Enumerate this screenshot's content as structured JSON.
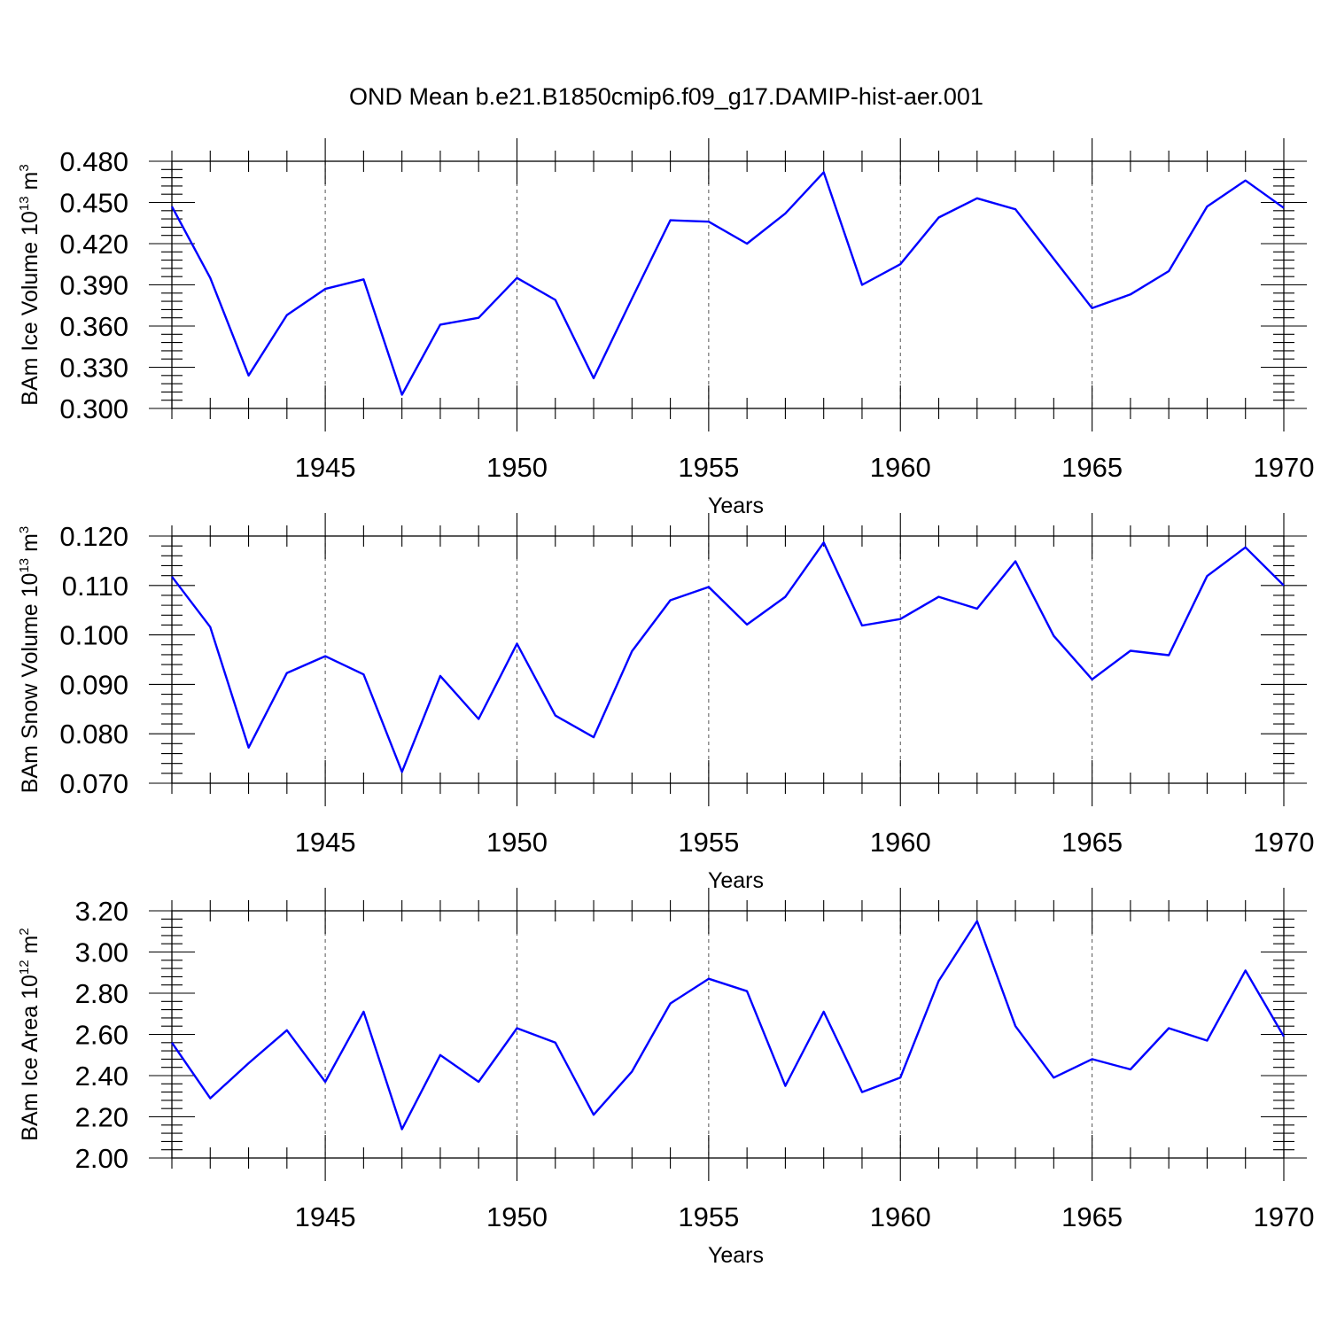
{
  "title": "OND Mean b.e21.B1850cmip6.f09_g17.DAMIP-hist-aer.001",
  "line_color": "#0000ff",
  "chart_data": [
    {
      "type": "line",
      "xlabel": "Years",
      "ylabel": {
        "prefix": "BAm Ice Volume 10",
        "exp": "13",
        "unit": " m",
        "unit_exp": "3"
      },
      "xlim": [
        1941,
        1970
      ],
      "ylim": [
        0.3,
        0.48
      ],
      "xticks": [
        1945,
        1950,
        1955,
        1960,
        1965,
        1970
      ],
      "yticks": [
        "0.300",
        "0.330",
        "0.360",
        "0.390",
        "0.420",
        "0.450",
        "0.480"
      ],
      "grid": "vertical dashed at major x ticks",
      "series": [
        {
          "x": [
            1941,
            1942,
            1943,
            1944,
            1945,
            1946,
            1947,
            1948,
            1949,
            1950,
            1951,
            1952,
            1953,
            1954,
            1955,
            1956,
            1957,
            1958,
            1959,
            1960,
            1961,
            1962,
            1963,
            1964,
            1965,
            1966,
            1967,
            1968,
            1969,
            1970
          ],
          "values": [
            0.447,
            0.395,
            0.324,
            0.368,
            0.387,
            0.394,
            0.31,
            0.361,
            0.366,
            0.395,
            0.379,
            0.322,
            0.38,
            0.437,
            0.436,
            0.42,
            0.442,
            0.472,
            0.39,
            0.405,
            0.439,
            0.453,
            0.445,
            0.409,
            0.373,
            0.383,
            0.4,
            0.447,
            0.466,
            0.446
          ]
        }
      ]
    },
    {
      "type": "line",
      "xlabel": "Years",
      "ylabel": {
        "prefix": "BAm Snow Volume 10",
        "exp": "13",
        "unit": " m",
        "unit_exp": "3"
      },
      "xlim": [
        1941,
        1970
      ],
      "ylim": [
        0.07,
        0.12
      ],
      "xticks": [
        1945,
        1950,
        1955,
        1960,
        1965,
        1970
      ],
      "yticks": [
        "0.070",
        "0.080",
        "0.090",
        "0.100",
        "0.110",
        "0.120"
      ],
      "grid": "vertical dashed at major x ticks",
      "series": [
        {
          "x": [
            1941,
            1942,
            1943,
            1944,
            1945,
            1946,
            1947,
            1948,
            1949,
            1950,
            1951,
            1952,
            1953,
            1954,
            1955,
            1956,
            1957,
            1958,
            1959,
            1960,
            1961,
            1962,
            1963,
            1964,
            1965,
            1966,
            1967,
            1968,
            1969,
            1970
          ],
          "values": [
            0.1118,
            0.1016,
            0.0772,
            0.0923,
            0.0957,
            0.092,
            0.0723,
            0.0917,
            0.083,
            0.0982,
            0.0837,
            0.0793,
            0.0967,
            0.107,
            0.1097,
            0.1021,
            0.1077,
            0.1187,
            0.1019,
            0.1032,
            0.1077,
            0.1053,
            0.1149,
            0.0998,
            0.091,
            0.0968,
            0.0959,
            0.1119,
            0.1177,
            0.11
          ]
        }
      ]
    },
    {
      "type": "line",
      "xlabel": "Years",
      "ylabel": {
        "prefix": "BAm Ice Area 10",
        "exp": "12",
        "unit": " m",
        "unit_exp": "2"
      },
      "xlim": [
        1941,
        1970
      ],
      "ylim": [
        2.0,
        3.2
      ],
      "xticks": [
        1945,
        1950,
        1955,
        1960,
        1965,
        1970
      ],
      "yticks": [
        "2.00",
        "2.20",
        "2.40",
        "2.60",
        "2.80",
        "3.00",
        "3.20"
      ],
      "grid": "vertical dashed at major x ticks",
      "series": [
        {
          "x": [
            1941,
            1942,
            1943,
            1944,
            1945,
            1946,
            1947,
            1948,
            1949,
            1950,
            1951,
            1952,
            1953,
            1954,
            1955,
            1956,
            1957,
            1958,
            1959,
            1960,
            1961,
            1962,
            1963,
            1964,
            1965,
            1966,
            1967,
            1968,
            1969,
            1970
          ],
          "values": [
            2.56,
            2.29,
            2.46,
            2.62,
            2.37,
            2.71,
            2.14,
            2.5,
            2.37,
            2.63,
            2.56,
            2.21,
            2.42,
            2.75,
            2.87,
            2.81,
            2.35,
            2.71,
            2.32,
            2.39,
            2.86,
            3.15,
            2.64,
            2.39,
            2.48,
            2.43,
            2.63,
            2.57,
            2.91,
            2.59
          ]
        }
      ]
    }
  ]
}
